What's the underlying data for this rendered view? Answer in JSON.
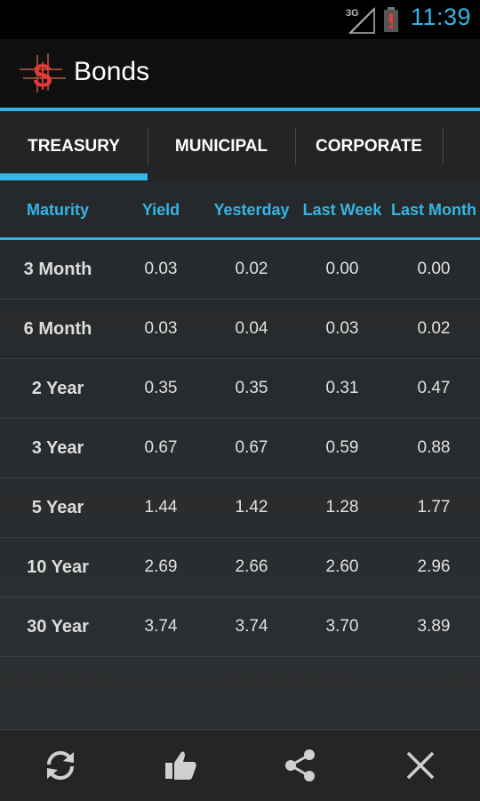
{
  "status_bar": {
    "network": "3G",
    "time": "11:39",
    "accent_color": "#33b5e5",
    "battery_alert_color": "#e53935"
  },
  "action_bar": {
    "title": "Bonds",
    "icon": "dollar-sign-icon"
  },
  "tabs": [
    {
      "label": "TREASURY",
      "selected": true
    },
    {
      "label": "MUNICIPAL",
      "selected": false
    },
    {
      "label": "CORPORATE",
      "selected": false
    }
  ],
  "table": {
    "columns": [
      "Maturity",
      "Yield",
      "Yesterday",
      "Last Week",
      "Last Month"
    ],
    "rows": [
      [
        "3 Month",
        "0.03",
        "0.02",
        "0.00",
        "0.00"
      ],
      [
        "6 Month",
        "0.03",
        "0.04",
        "0.03",
        "0.02"
      ],
      [
        "2 Year",
        "0.35",
        "0.35",
        "0.31",
        "0.47"
      ],
      [
        "3 Year",
        "0.67",
        "0.67",
        "0.59",
        "0.88"
      ],
      [
        "5 Year",
        "1.44",
        "1.42",
        "1.28",
        "1.77"
      ],
      [
        "10 Year",
        "2.69",
        "2.66",
        "2.60",
        "2.96"
      ],
      [
        "30 Year",
        "3.74",
        "3.74",
        "3.70",
        "3.89"
      ]
    ]
  },
  "bottom_bar": {
    "buttons": [
      "refresh-icon",
      "thumbs-up-icon",
      "share-icon",
      "close-icon"
    ]
  }
}
